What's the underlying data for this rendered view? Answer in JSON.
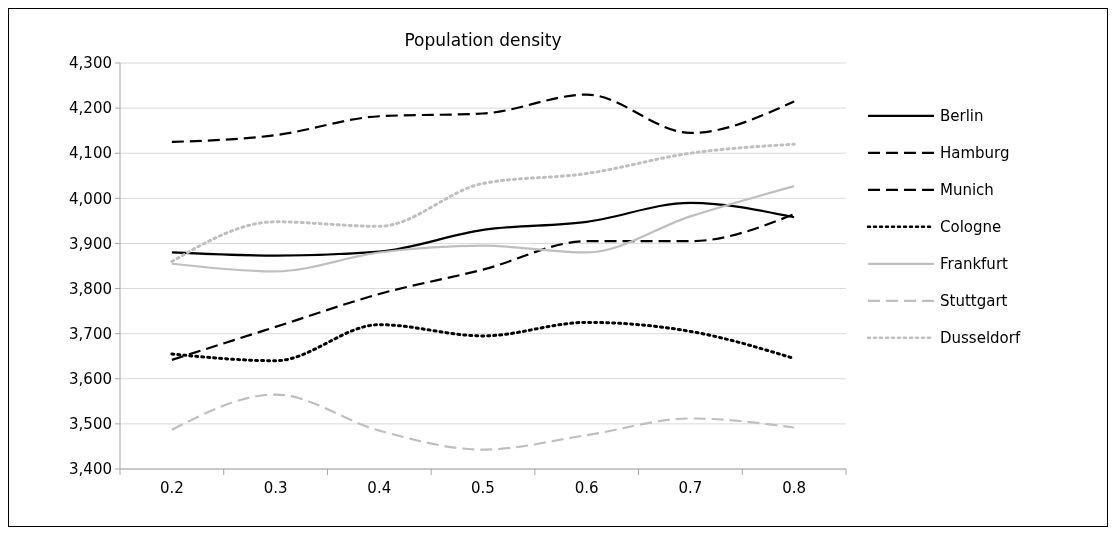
{
  "chart_data": {
    "type": "line",
    "title": "Population density",
    "categories": [
      "0.2",
      "0.3",
      "0.4",
      "0.5",
      "0.6",
      "0.7",
      "0.8"
    ],
    "ylim": [
      3400,
      4300
    ],
    "yticks": [
      {
        "value": 3400,
        "label": "3,400"
      },
      {
        "value": 3500,
        "label": "3,500"
      },
      {
        "value": 3600,
        "label": "3,600"
      },
      {
        "value": 3700,
        "label": "3,700"
      },
      {
        "value": 3800,
        "label": "3,800"
      },
      {
        "value": 3900,
        "label": "3,900"
      },
      {
        "value": 4000,
        "label": "4,000"
      },
      {
        "value": 4100,
        "label": "4,100"
      },
      {
        "value": 4200,
        "label": "4,200"
      },
      {
        "value": 4300,
        "label": "4,300"
      }
    ],
    "grid": "y",
    "legend": "right",
    "marker": "none",
    "series": [
      {
        "name": "Berlin",
        "color": "#000000",
        "line_style": "solid",
        "values": [
          3880,
          3873,
          3882,
          3930,
          3948,
          3990,
          3958
        ]
      },
      {
        "name": "Hamburg",
        "color": "#000000",
        "line_style": "dashed",
        "values": [
          3642,
          3715,
          3788,
          3842,
          3905,
          3905,
          3965
        ]
      },
      {
        "name": "Munich",
        "color": "#000000",
        "line_style": "dashed",
        "values": [
          4125,
          4140,
          4182,
          4188,
          4230,
          4145,
          4215
        ]
      },
      {
        "name": "Cologne",
        "color": "#000000",
        "line_style": "dotted",
        "values": [
          3655,
          3640,
          3720,
          3695,
          3725,
          3705,
          3645
        ]
      },
      {
        "name": "Frankfurt",
        "color": "#bfbfbf",
        "line_style": "solid",
        "values": [
          3855,
          3838,
          3880,
          3895,
          3880,
          3960,
          4027
        ]
      },
      {
        "name": "Stuttgart",
        "color": "#bfbfbf",
        "line_style": "dashed",
        "values": [
          3487,
          3565,
          3485,
          3443,
          3475,
          3512,
          3492
        ]
      },
      {
        "name": "Dusseldorf",
        "color": "#bfbfbf",
        "line_style": "dotted",
        "values": [
          3860,
          3948,
          3938,
          4033,
          4055,
          4100,
          4120
        ]
      }
    ]
  }
}
